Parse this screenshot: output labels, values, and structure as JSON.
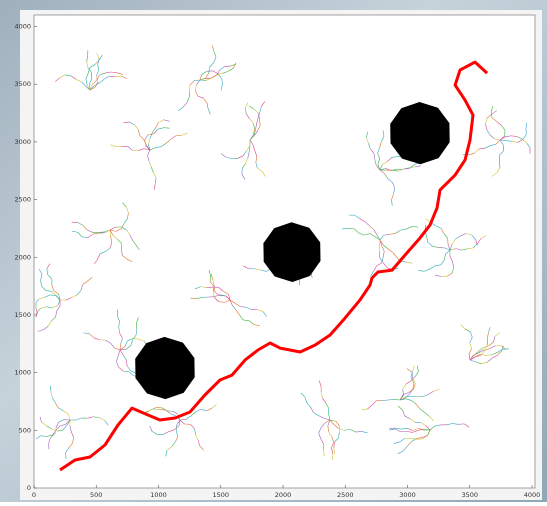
{
  "chart_data": {
    "type": "line",
    "xlim": [
      0,
      4000
    ],
    "ylim": [
      0,
      4100
    ],
    "xticks": [
      0,
      500,
      1000,
      1500,
      2000,
      2500,
      3000,
      3500,
      4000
    ],
    "yticks": [
      0,
      500,
      1000,
      1500,
      2000,
      2500,
      3000,
      3500,
      4000
    ],
    "series": [
      {
        "color": "#ff0000",
        "x": [
          209,
          329,
          450,
          570,
          675,
          787,
          916,
          1012,
          1133,
          1253,
          1373,
          1494,
          1590,
          1695,
          1799,
          1896,
          1976,
          2056,
          2137,
          2257,
          2378,
          2498,
          2618,
          2699,
          2715,
          2763,
          2876,
          2980,
          3100,
          3181,
          3237,
          3261,
          3382,
          3462,
          3502,
          3526,
          3462,
          3382,
          3422,
          3542,
          3639
        ],
        "values": [
          156,
          243,
          269,
          373,
          546,
          693,
          633,
          589,
          607,
          659,
          806,
          936,
          979,
          1109,
          1196,
          1257,
          1213,
          1196,
          1179,
          1239,
          1326,
          1473,
          1629,
          1759,
          1820,
          1872,
          1889,
          2019,
          2166,
          2279,
          2426,
          2582,
          2712,
          2842,
          3016,
          3232,
          3362,
          3492,
          3622,
          3692,
          3596
        ]
      }
    ],
    "obstacles": {
      "color": "#000000",
      "x": [
        1052,
        2072,
        3100
      ],
      "values": [
        1040,
        2045,
        3076
      ],
      "radius": [
        250,
        240,
        250
      ]
    }
  }
}
